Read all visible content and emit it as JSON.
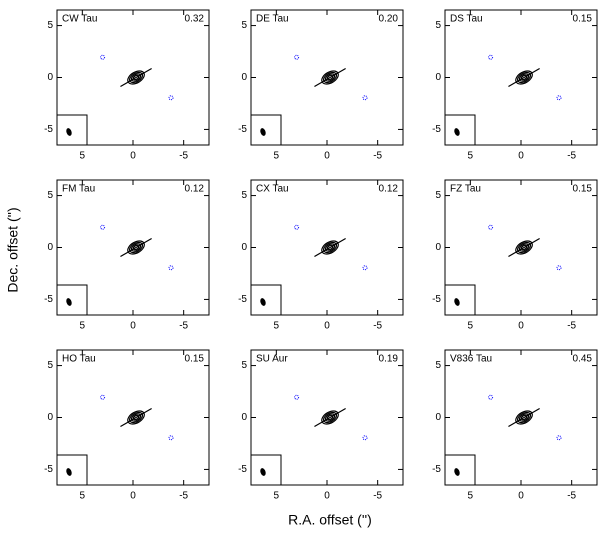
{
  "figure": {
    "xlabel": "R.A. offset ('')",
    "ylabel": "Dec. offset ('')"
  },
  "chart_data": [
    {
      "type": "contour",
      "title": "CW Tau",
      "annotation": "0.32",
      "xlim": [
        7.5,
        -7.5
      ],
      "ylim": [
        -6.5,
        6.5
      ],
      "xticks": [
        5,
        0,
        -5
      ],
      "yticks": [
        -5,
        0,
        5
      ]
    },
    {
      "type": "contour",
      "title": "DE Tau",
      "annotation": "0.20",
      "xlim": [
        7.5,
        -7.5
      ],
      "ylim": [
        -6.5,
        6.5
      ],
      "xticks": [
        5,
        0,
        -5
      ],
      "yticks": [
        -5,
        0,
        5
      ]
    },
    {
      "type": "contour",
      "title": "DS Tau",
      "annotation": "0.15",
      "xlim": [
        7.5,
        -7.5
      ],
      "ylim": [
        -6.5,
        6.5
      ],
      "xticks": [
        5,
        0,
        -5
      ],
      "yticks": [
        -5,
        0,
        5
      ]
    },
    {
      "type": "contour",
      "title": "FM Tau",
      "annotation": "0.12",
      "xlim": [
        7.5,
        -7.5
      ],
      "ylim": [
        -6.5,
        6.5
      ],
      "xticks": [
        5,
        0,
        -5
      ],
      "yticks": [
        -5,
        0,
        5
      ]
    },
    {
      "type": "contour",
      "title": "CX Tau",
      "annotation": "0.12",
      "xlim": [
        7.5,
        -7.5
      ],
      "ylim": [
        -6.5,
        6.5
      ],
      "xticks": [
        5,
        0,
        -5
      ],
      "yticks": [
        -5,
        0,
        5
      ]
    },
    {
      "type": "contour",
      "title": "FZ Tau",
      "annotation": "0.15",
      "xlim": [
        7.5,
        -7.5
      ],
      "ylim": [
        -6.5,
        6.5
      ],
      "xticks": [
        5,
        0,
        -5
      ],
      "yticks": [
        -5,
        0,
        5
      ]
    },
    {
      "type": "contour",
      "title": "HO Tau",
      "annotation": "0.15",
      "xlim": [
        7.5,
        -7.5
      ],
      "ylim": [
        -6.5,
        6.5
      ],
      "xticks": [
        5,
        0,
        -5
      ],
      "yticks": [
        -5,
        0,
        5
      ]
    },
    {
      "type": "contour",
      "title": "SU Aur",
      "annotation": "0.19",
      "xlim": [
        7.5,
        -7.5
      ],
      "ylim": [
        -6.5,
        6.5
      ],
      "xticks": [
        5,
        0,
        -5
      ],
      "yticks": [
        -5,
        0,
        5
      ]
    },
    {
      "type": "contour",
      "title": "V836 Tau",
      "annotation": "0.45",
      "xlim": [
        7.5,
        -7.5
      ],
      "ylim": [
        -6.5,
        6.5
      ],
      "xticks": [
        5,
        0,
        -5
      ],
      "yticks": [
        -5,
        0,
        5
      ]
    }
  ]
}
